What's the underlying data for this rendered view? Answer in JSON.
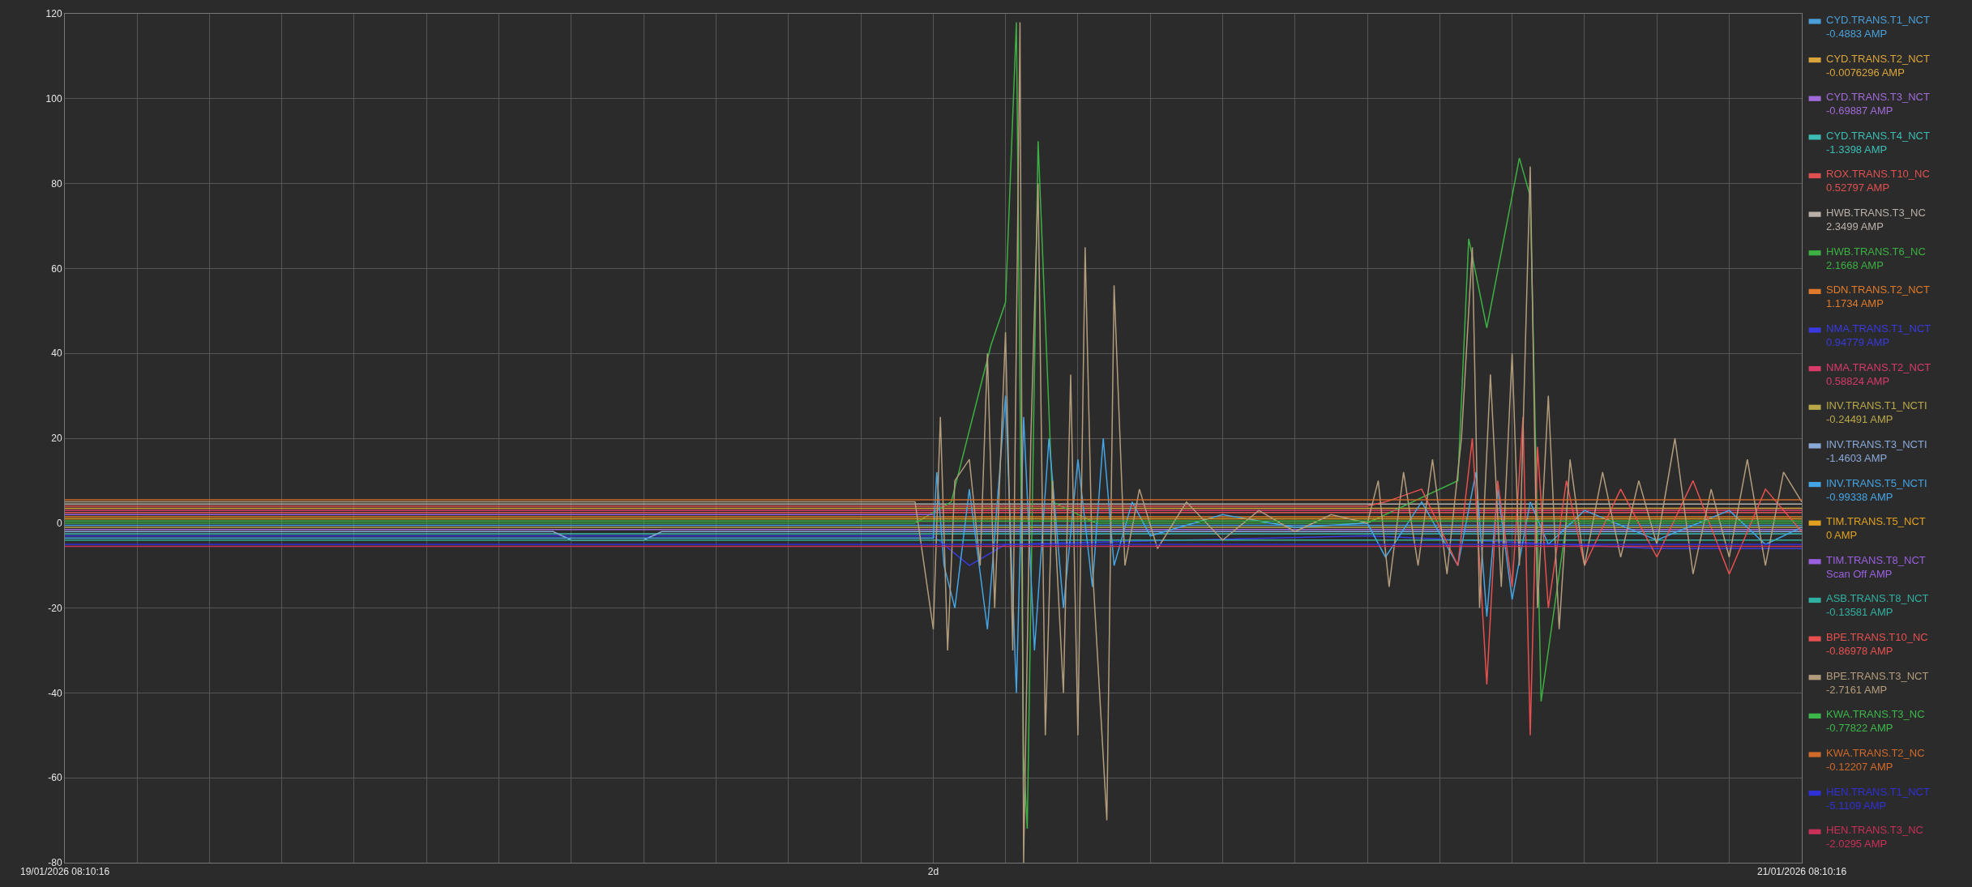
{
  "chart_data": {
    "type": "line",
    "xlim": [
      "2026-01-19T08:10:16",
      "2026-01-21T08:10:16"
    ],
    "ylim": [
      -80,
      120
    ],
    "xticks": [
      {
        "value": "2026-01-19T08:10:16",
        "label": "19/01/2026 08:10:16"
      },
      {
        "value": "2026-01-19T10:10",
        "label": null
      },
      {
        "value": "2026-01-19T12:10",
        "label": null
      },
      {
        "value": "2026-01-19T14:10",
        "label": null
      },
      {
        "value": "2026-01-19T16:10",
        "label": null
      },
      {
        "value": "2026-01-19T18:10",
        "label": null
      },
      {
        "value": "2026-01-19T20:10",
        "label": null
      },
      {
        "value": "2026-01-19T22:10",
        "label": null
      },
      {
        "value": "2026-01-20T00:10",
        "label": null
      },
      {
        "value": "2026-01-20T02:10",
        "label": null
      },
      {
        "value": "2026-01-20T04:10",
        "label": null
      },
      {
        "value": "2026-01-20T06:10",
        "label": null
      },
      {
        "value": "2026-01-20T08:10:16",
        "label": "2d"
      },
      {
        "value": "2026-01-20T10:10",
        "label": null
      },
      {
        "value": "2026-01-20T12:10",
        "label": null
      },
      {
        "value": "2026-01-20T14:10",
        "label": null
      },
      {
        "value": "2026-01-20T16:10",
        "label": null
      },
      {
        "value": "2026-01-20T18:10",
        "label": null
      },
      {
        "value": "2026-01-20T20:10",
        "label": null
      },
      {
        "value": "2026-01-20T22:10",
        "label": null
      },
      {
        "value": "2026-01-21T00:10",
        "label": null
      },
      {
        "value": "2026-01-21T02:10",
        "label": null
      },
      {
        "value": "2026-01-21T04:10",
        "label": null
      },
      {
        "value": "2026-01-21T06:10",
        "label": null
      },
      {
        "value": "2026-01-21T08:10:16",
        "label": "21/01/2026 08:10:16"
      }
    ],
    "yticks": [
      -80,
      -60,
      -40,
      -20,
      0,
      20,
      40,
      60,
      80,
      100,
      120
    ],
    "grid": true,
    "legend": "right",
    "series": [
      {
        "name": "CYD.TRANS.T1_NCT\n-0.4883 AMP",
        "color": "#4a9fd8",
        "x": [
          "2026-01-19T08:10:16",
          "2026-01-21T08:10:16"
        ],
        "values": [
          -0.5,
          -0.5
        ]
      },
      {
        "name": "CYD.TRANS.T2_NCT\n-0.0076296 AMP",
        "color": "#d9a43a",
        "x": [
          "2026-01-19T08:10:16",
          "2026-01-21T08:10:16"
        ],
        "values": [
          3.5,
          3.5
        ]
      },
      {
        "name": "CYD.TRANS.T3_NCT\n-0.69887 AMP",
        "color": "#a06ad8",
        "x": [
          "2026-01-19T08:10:16",
          "2026-01-21T08:10:16"
        ],
        "values": [
          -1.5,
          -1.5
        ]
      },
      {
        "name": "CYD.TRANS.T4_NCT\n-1.3398 AMP",
        "color": "#3bbdb5",
        "x": [
          "2026-01-19T08:10:16",
          "2026-01-21T08:10:16"
        ],
        "values": [
          -2.5,
          -2.5
        ]
      },
      {
        "name": "ROX.TRANS.T10_NC\n0.52797 AMP",
        "color": "#e05050",
        "x": [
          "2026-01-19T08:10:16",
          "2026-01-21T08:10:16"
        ],
        "values": [
          2.5,
          2.5
        ]
      },
      {
        "name": "HWB.TRANS.T3_NC\n2.3499 AMP",
        "color": "#b8b0a8",
        "x": [
          "2026-01-19T08:10:16",
          "2026-01-21T08:10:16"
        ],
        "values": [
          4.5,
          4.5
        ]
      },
      {
        "name": "HWB.TRANS.T6_NC\n2.1668 AMP",
        "color": "#3cb043",
        "x": [
          "2026-01-19T08:10:16",
          "2026-01-20T07:40",
          "2026-01-20T08:40",
          "2026-01-20T09:46",
          "2026-01-20T10:10",
          "2026-01-20T10:28",
          "2026-01-20T10:40",
          "2026-01-20T10:46",
          "2026-01-20T11:04",
          "2026-01-20T11:28",
          "2026-01-20T12:40",
          "2026-01-20T13:10",
          "2026-01-20T20:10",
          "2026-01-20T22:40",
          "2026-01-20T22:58",
          "2026-01-20T23:28",
          "2026-01-21T00:22",
          "2026-01-21T00:40",
          "2026-01-21T00:58",
          "2026-01-21T01:40",
          "2026-01-21T08:10:16"
        ],
        "values": [
          0,
          0,
          5,
          42,
          52,
          118,
          -55,
          -72,
          90,
          5,
          0,
          0,
          0,
          10,
          67,
          46,
          86,
          77,
          -42,
          0,
          0
        ]
      },
      {
        "name": "SDN.TRANS.T2_NCT\n1.1734 AMP",
        "color": "#e07a2a",
        "x": [
          "2026-01-19T08:10:16",
          "2026-01-21T08:10:16"
        ],
        "values": [
          1.5,
          1.5
        ]
      },
      {
        "name": "NMA.TRANS.T1_NCT\n0.94779 AMP",
        "color": "#3a3ae0",
        "x": [
          "2026-01-19T08:10:16",
          "2026-01-20T08:10:16",
          "2026-01-20T09:10",
          "2026-01-20T10:10",
          "2026-01-20T20:10",
          "2026-01-21T04:10",
          "2026-01-21T08:10:16"
        ],
        "values": [
          -3,
          -3,
          -10,
          -5,
          -3,
          -6,
          -6
        ]
      },
      {
        "name": "NMA.TRANS.T2_NCT\n0.58824 AMP",
        "color": "#d83a6a",
        "x": [
          "2026-01-19T08:10:16",
          "2026-01-21T08:10:16"
        ],
        "values": [
          3,
          3
        ]
      },
      {
        "name": "INV.TRANS.T1_NCTI\n-0.24491 AMP",
        "color": "#b8a848",
        "x": [
          "2026-01-19T08:10:16",
          "2026-01-21T08:10:16"
        ],
        "values": [
          -1,
          -1
        ]
      },
      {
        "name": "INV.TRANS.T3_NCTI\n-1.4603 AMP",
        "color": "#8aa8d8",
        "x": [
          "2026-01-19T08:10:16",
          "2026-01-19T21:40",
          "2026-01-19T22:10",
          "2026-01-20T00:10",
          "2026-01-20T00:40",
          "2026-01-21T08:10:16"
        ],
        "values": [
          -2,
          -2,
          -4,
          -4,
          -2,
          -2
        ]
      },
      {
        "name": "INV.TRANS.T5_NCTI\n-0.99338 AMP",
        "color": "#44a4e4",
        "x": [
          "2026-01-19T08:10:16",
          "2026-01-20T08:10:16",
          "2026-01-20T08:16",
          "2026-01-20T08:28",
          "2026-01-20T08:46",
          "2026-01-20T09:10",
          "2026-01-20T09:40",
          "2026-01-20T10:10",
          "2026-01-20T10:28",
          "2026-01-20T10:40",
          "2026-01-20T10:58",
          "2026-01-20T11:22",
          "2026-01-20T11:46",
          "2026-01-20T12:10",
          "2026-01-20T12:34",
          "2026-01-20T12:52",
          "2026-01-20T13:10",
          "2026-01-20T13:40",
          "2026-01-20T14:10",
          "2026-01-20T16:10",
          "2026-01-20T18:10",
          "2026-01-20T20:10",
          "2026-01-20T20:40",
          "2026-01-20T21:40",
          "2026-01-20T22:40",
          "2026-01-20T23:10",
          "2026-01-20T23:28",
          "2026-01-20T23:46",
          "2026-01-21T00:10",
          "2026-01-21T00:40",
          "2026-01-21T01:10",
          "2026-01-21T02:10",
          "2026-01-21T04:10",
          "2026-01-21T06:10",
          "2026-01-21T07:10",
          "2026-01-21T08:10:16"
        ],
        "values": [
          -3.5,
          -3.5,
          12,
          -10,
          -20,
          8,
          -25,
          30,
          -40,
          25,
          -30,
          20,
          -20,
          15,
          -15,
          20,
          -10,
          5,
          -3,
          2,
          -1,
          0,
          -8,
          5,
          -10,
          12,
          -22,
          8,
          -18,
          5,
          -5,
          3,
          -4,
          3,
          -5,
          -1
        ]
      },
      {
        "name": "TIM.TRANS.T5_NCT\n0 AMP",
        "color": "#e0a020",
        "x": [
          "2026-01-19T08:10:16",
          "2026-01-21T08:10:16"
        ],
        "values": [
          1,
          1
        ]
      },
      {
        "name": "TIM.TRANS.T8_NCT\nScan Off AMP",
        "color": "#9a60e0",
        "x": [
          "2026-01-19T08:10:16",
          "2026-01-20T08:10:16"
        ],
        "values": [
          2,
          2
        ]
      },
      {
        "name": "ASB.TRANS.T8_NCT\n-0.13581 AMP",
        "color": "#30b0a0",
        "x": [
          "2026-01-19T08:10:16",
          "2026-01-21T08:10:16"
        ],
        "values": [
          -4,
          -4
        ]
      },
      {
        "name": "BPE.TRANS.T10_NC\n-0.86978 AMP",
        "color": "#e85050",
        "x": [
          "2026-01-19T08:10:16",
          "2026-01-20T20:10",
          "2026-01-20T20:40",
          "2026-01-20T21:40",
          "2026-01-20T22:40",
          "2026-01-20T23:04",
          "2026-01-20T23:28",
          "2026-01-20T23:46",
          "2026-01-21T00:10",
          "2026-01-21T00:28",
          "2026-01-21T00:40",
          "2026-01-21T00:52",
          "2026-01-21T01:10",
          "2026-01-21T01:40",
          "2026-01-21T02:10",
          "2026-01-21T03:10",
          "2026-01-21T04:10",
          "2026-01-21T05:10",
          "2026-01-21T06:10",
          "2026-01-21T07:10",
          "2026-01-21T08:10:16"
        ],
        "values": [
          4,
          4,
          5,
          8,
          -10,
          20,
          -38,
          10,
          -15,
          25,
          -50,
          18,
          -20,
          10,
          -10,
          8,
          -8,
          10,
          -12,
          8,
          -2
        ]
      },
      {
        "name": "BPE.TRANS.T3_NCT\n-2.7161 AMP",
        "color": "#b39c7c",
        "x": [
          "2026-01-19T08:10:16",
          "2026-01-20T07:40",
          "2026-01-20T08:10:16",
          "2026-01-20T08:22",
          "2026-01-20T08:34",
          "2026-01-20T08:46",
          "2026-01-20T09:10",
          "2026-01-20T09:28",
          "2026-01-20T09:40",
          "2026-01-20T09:52",
          "2026-01-20T10:10",
          "2026-01-20T10:22",
          "2026-01-20T10:34",
          "2026-01-20T10:40",
          "2026-01-20T10:52",
          "2026-01-20T11:04",
          "2026-01-20T11:16",
          "2026-01-20T11:28",
          "2026-01-20T11:46",
          "2026-01-20T11:58",
          "2026-01-20T12:10",
          "2026-01-20T12:22",
          "2026-01-20T12:34",
          "2026-01-20T12:58",
          "2026-01-20T13:10",
          "2026-01-20T13:28",
          "2026-01-20T13:52",
          "2026-01-20T14:22",
          "2026-01-20T15:10",
          "2026-01-20T16:10",
          "2026-01-20T17:10",
          "2026-01-20T18:10",
          "2026-01-20T19:10",
          "2026-01-20T20:10",
          "2026-01-20T20:28",
          "2026-01-20T20:46",
          "2026-01-20T21:10",
          "2026-01-20T21:34",
          "2026-01-20T21:58",
          "2026-01-20T22:22",
          "2026-01-20T22:46",
          "2026-01-20T23:04",
          "2026-01-20T23:16",
          "2026-01-20T23:34",
          "2026-01-20T23:52",
          "2026-01-21T00:10",
          "2026-01-21T00:22",
          "2026-01-21T00:40",
          "2026-01-21T00:52",
          "2026-01-21T01:10",
          "2026-01-21T01:28",
          "2026-01-21T01:46",
          "2026-01-21T02:10",
          "2026-01-21T02:40",
          "2026-01-21T03:10",
          "2026-01-21T03:40",
          "2026-01-21T04:10",
          "2026-01-21T04:40",
          "2026-01-21T05:10",
          "2026-01-21T05:40",
          "2026-01-21T06:10",
          "2026-01-21T06:40",
          "2026-01-21T07:10",
          "2026-01-21T07:40",
          "2026-01-21T08:10:16"
        ],
        "values": [
          5,
          5,
          -25,
          25,
          -30,
          10,
          15,
          -10,
          40,
          -20,
          45,
          -30,
          118,
          -80,
          20,
          80,
          -50,
          10,
          -40,
          35,
          -50,
          65,
          -10,
          -70,
          56,
          -10,
          8,
          -6,
          5,
          -4,
          3,
          -2,
          2,
          0,
          10,
          -15,
          12,
          -10,
          15,
          -12,
          20,
          65,
          -20,
          35,
          -15,
          40,
          -10,
          84,
          -20,
          30,
          -25,
          15,
          -10,
          12,
          -8,
          10,
          -5,
          20,
          -12,
          8,
          -8,
          15,
          -10,
          12,
          5
        ]
      },
      {
        "name": "KWA.TRANS.T3_NC\n-0.77822 AMP",
        "color": "#3cb84a",
        "x": [
          "2026-01-19T08:10:16",
          "2026-01-21T08:10:16"
        ],
        "values": [
          0.5,
          0.5
        ]
      },
      {
        "name": "KWA.TRANS.T2_NC\n-0.12207 AMP",
        "color": "#d06a28",
        "x": [
          "2026-01-19T08:10:16",
          "2026-01-21T08:10:16"
        ],
        "values": [
          5.5,
          5.5
        ]
      },
      {
        "name": "HEN.TRANS.T1_NCT\n-5.1109 AMP",
        "color": "#3030d8",
        "x": [
          "2026-01-19T08:10:16",
          "2026-01-21T08:10:16"
        ],
        "values": [
          -5,
          -5
        ]
      },
      {
        "name": "HEN.TRANS.T3_NC\n-2.0295 AMP",
        "color": "#c83058",
        "x": [
          "2026-01-19T08:10:16",
          "2026-01-21T08:10:16"
        ],
        "values": [
          -5.5,
          -5.5
        ]
      }
    ]
  }
}
